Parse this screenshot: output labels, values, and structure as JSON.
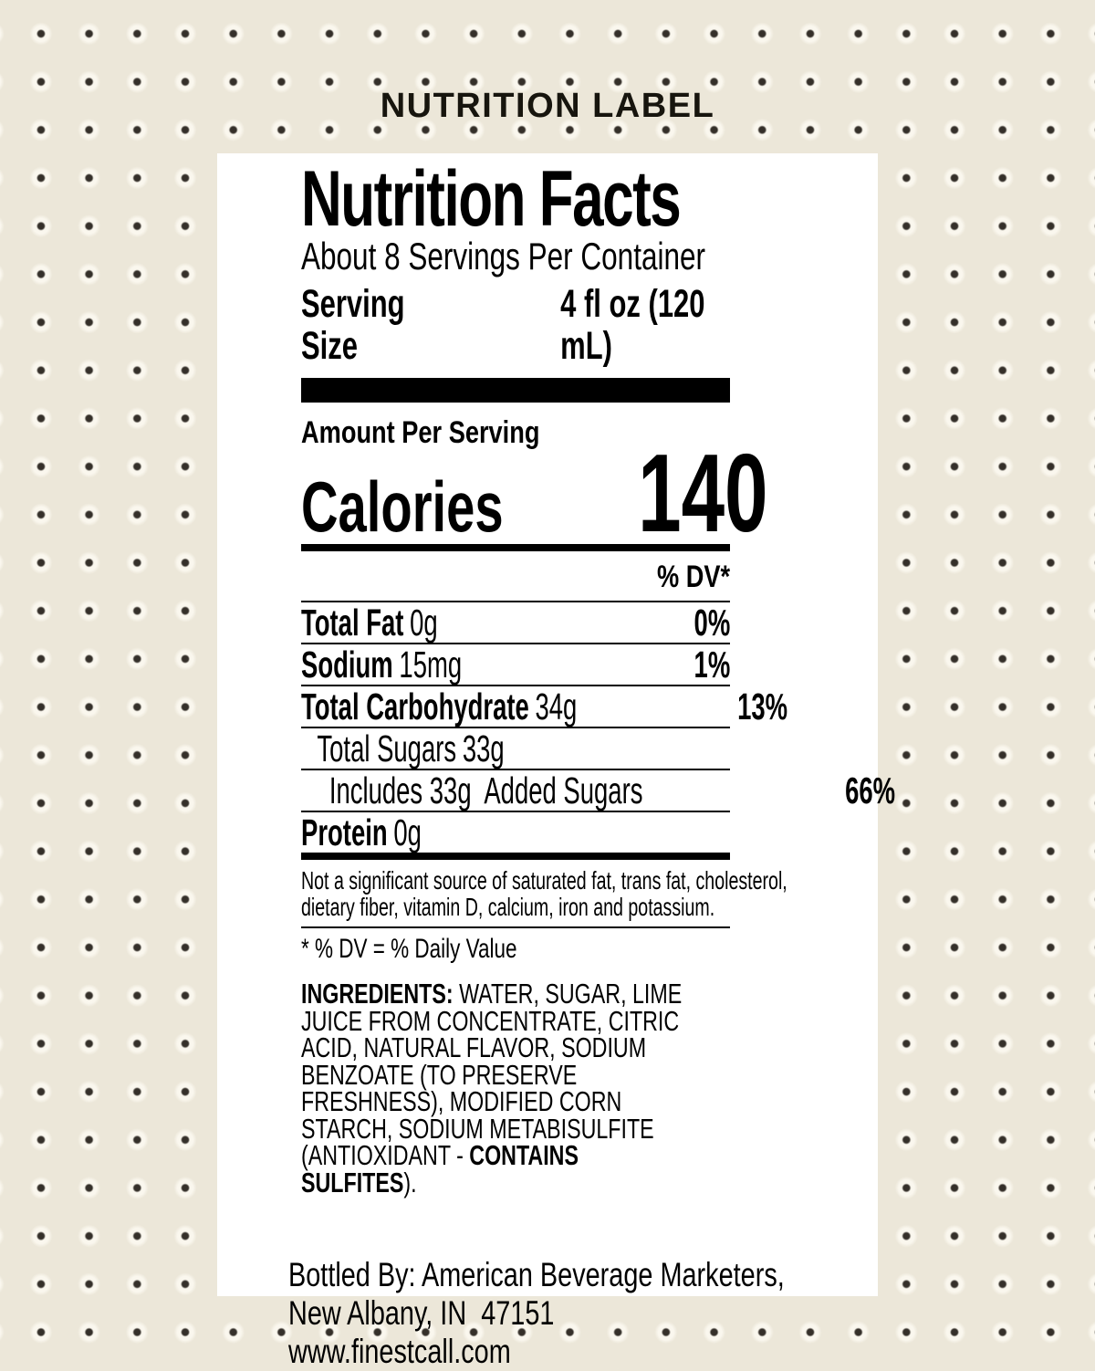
{
  "colors": {
    "background": "#ece7d9",
    "dot": "#35302a",
    "card": "#ffffff",
    "ink": "#000000",
    "title_ink": "#17150e"
  },
  "header": {
    "title": "NUTRITION LABEL"
  },
  "label": {
    "title": "Nutrition Facts",
    "servings_per_container": "About 8 Servings Per Container",
    "serving_size": {
      "label": "Serving Size",
      "value": "4 fl oz (120 mL)"
    },
    "amount_per_serving": "Amount Per Serving",
    "calories": {
      "label": "Calories",
      "value": "140"
    },
    "daily_value_header": "% DV*",
    "rows": [
      {
        "name": "Total Fat",
        "amount": "0g",
        "dv": "0%"
      },
      {
        "name": "Sodium",
        "amount": "15mg",
        "dv": "1%"
      },
      {
        "name": "Total Carbohydrate",
        "amount": "34g",
        "dv": "13%"
      },
      {
        "name": "Total Sugars",
        "amount": "33g",
        "dv": ""
      },
      {
        "name": "Includes 33g  Added Sugars",
        "amount": "",
        "dv": "66%"
      },
      {
        "name": "Protein",
        "amount": "0g",
        "dv": ""
      }
    ],
    "not_significant_lines": [
      "Not a significant source of saturated fat, trans fat, cholesterol,",
      "dietary fiber, vitamin D, calcium, iron and potassium."
    ],
    "dv_footnote": "* % DV = % Daily Value",
    "ingredients_lines": [
      {
        "bold": "INGREDIENTS:",
        "post": " WATER, SUGAR, LIME"
      },
      {
        "pre": "JUICE FROM CONCENTRATE, CITRIC"
      },
      {
        "pre": "ACID, NATURAL FLAVOR, SODIUM"
      },
      {
        "pre": "BENZOATE (TO PRESERVE"
      },
      {
        "pre": "FRESHNESS), MODIFIED CORN"
      },
      {
        "pre": "STARCH, SODIUM METABISULFITE"
      },
      {
        "pre": "(ANTIOXIDANT - ",
        "bold": "CONTAINS"
      },
      {
        "bold": "SULFITES",
        "post": ")."
      }
    ],
    "bottler_lines": [
      "Bottled By: American Beverage Marketers,",
      "New Albany, IN  47151",
      "www.finestcall.com"
    ]
  }
}
